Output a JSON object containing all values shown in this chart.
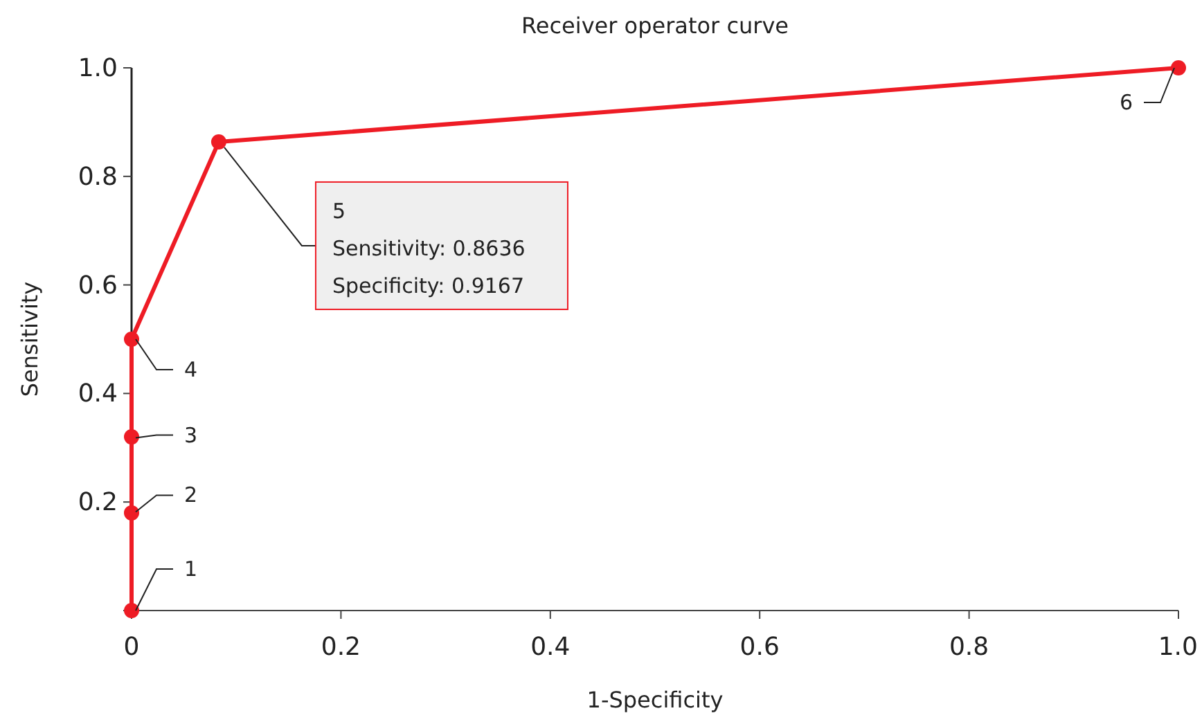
{
  "chart_data": {
    "type": "line",
    "title": "Receiver operator curve",
    "xlabel": "1-Specificity",
    "ylabel": "Sensitivity",
    "x": [
      0,
      0,
      0,
      0,
      0.0833,
      1
    ],
    "series": [
      {
        "color": "#ee1c25",
        "values": [
          0,
          0.18,
          0.32,
          0.5,
          0.8636,
          1
        ]
      }
    ],
    "xlim": [
      0,
      1
    ],
    "ylim": [
      0,
      1
    ],
    "xticks": [
      0,
      0.2,
      0.4,
      0.6,
      0.8,
      {
        "value": 1,
        "label": "1.0"
      }
    ],
    "yticks": [
      {
        "value": 0,
        "label": null
      },
      0.2,
      0.4,
      0.6,
      0.8,
      {
        "value": 1,
        "label": "1.0"
      }
    ],
    "marker": "circle",
    "line_style": "solid",
    "annotations": [
      {
        "text": "1",
        "x": 0,
        "y": 0
      },
      {
        "text": "2",
        "x": 0,
        "y": 0.1818
      },
      {
        "text": "3",
        "x": 0,
        "y": 0.3182
      },
      {
        "text": "4",
        "x": 0,
        "y": 0.5
      },
      {
        "text": "5\nSensitivity: 0.8636\nSpecificity: 0.9167",
        "x": 0.0833,
        "y": 0.8636
      },
      {
        "text": "6",
        "x": 1,
        "y": 1
      }
    ]
  }
}
